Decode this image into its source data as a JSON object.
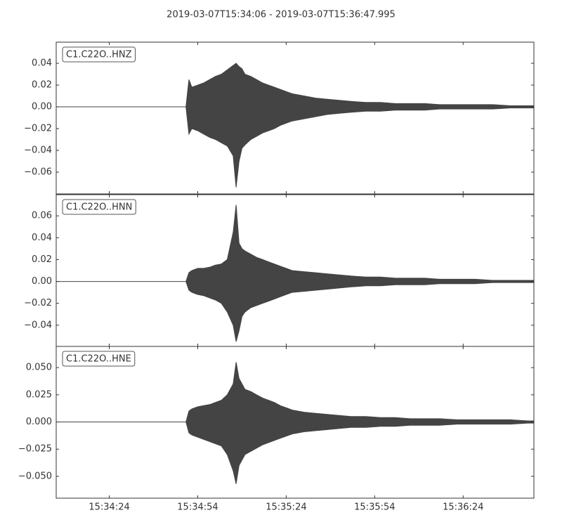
{
  "chart_data": [
    {
      "type": "waveform",
      "title": "2019-03-07T15:34:06  -  2019-03-07T15:36:47.995",
      "label": "C1.C22O..HNZ",
      "color": "#444444",
      "xlim": [
        0,
        161.995
      ],
      "x": [
        0,
        10,
        20,
        30,
        40,
        44,
        45,
        46,
        48,
        50,
        52,
        54,
        56,
        58,
        60,
        61,
        62,
        63,
        64,
        66,
        68,
        70,
        72,
        74,
        76,
        78,
        80,
        84,
        88,
        92,
        96,
        100,
        105,
        110,
        115,
        120,
        125,
        130,
        136,
        142,
        148,
        154,
        160,
        161.995
      ],
      "upper": [
        0,
        0,
        0,
        0,
        0,
        0,
        0.025,
        0.018,
        0.02,
        0.022,
        0.025,
        0.028,
        0.03,
        0.034,
        0.038,
        0.04,
        0.037,
        0.035,
        0.03,
        0.028,
        0.025,
        0.022,
        0.02,
        0.018,
        0.016,
        0.014,
        0.012,
        0.01,
        0.008,
        0.007,
        0.006,
        0.005,
        0.004,
        0.004,
        0.003,
        0.003,
        0.003,
        0.002,
        0.002,
        0.002,
        0.002,
        0.001,
        0.001,
        0.001
      ],
      "lower": [
        0,
        0,
        0,
        0,
        0,
        0,
        -0.025,
        -0.02,
        -0.022,
        -0.025,
        -0.028,
        -0.03,
        -0.033,
        -0.036,
        -0.045,
        -0.074,
        -0.05,
        -0.038,
        -0.035,
        -0.03,
        -0.027,
        -0.024,
        -0.022,
        -0.02,
        -0.017,
        -0.015,
        -0.013,
        -0.011,
        -0.009,
        -0.007,
        -0.006,
        -0.005,
        -0.004,
        -0.004,
        -0.003,
        -0.003,
        -0.003,
        -0.002,
        -0.002,
        -0.002,
        -0.002,
        -0.001,
        -0.001,
        -0.001
      ],
      "ylim": [
        -0.08,
        0.0594
      ],
      "yticks": [
        {
          "value": -0.06,
          "label": "−0.06"
        },
        {
          "value": -0.04,
          "label": "−0.04"
        },
        {
          "value": -0.02,
          "label": "−0.02"
        },
        {
          "value": 0,
          "label": "0.00"
        },
        0.02,
        0.04
      ]
    },
    {
      "type": "waveform",
      "label": "C1.C22O..HNN",
      "color": "#444444",
      "xlim": [
        0,
        161.995
      ],
      "x": [
        0,
        10,
        20,
        30,
        40,
        44,
        45,
        46,
        48,
        50,
        52,
        54,
        56,
        58,
        60,
        61,
        62,
        63,
        64,
        66,
        68,
        70,
        72,
        74,
        76,
        78,
        80,
        84,
        88,
        92,
        96,
        100,
        105,
        110,
        115,
        120,
        125,
        130,
        136,
        142,
        148,
        154,
        160,
        161.995
      ],
      "upper": [
        0,
        0,
        0,
        0,
        0,
        0,
        0.008,
        0.01,
        0.012,
        0.012,
        0.013,
        0.015,
        0.016,
        0.02,
        0.045,
        0.07,
        0.035,
        0.03,
        0.028,
        0.025,
        0.022,
        0.02,
        0.018,
        0.016,
        0.014,
        0.012,
        0.01,
        0.009,
        0.008,
        0.007,
        0.006,
        0.005,
        0.004,
        0.004,
        0.003,
        0.003,
        0.003,
        0.002,
        0.002,
        0.002,
        0.001,
        0.001,
        0.001,
        0.001
      ],
      "lower": [
        0,
        0,
        0,
        0,
        0,
        0,
        -0.008,
        -0.01,
        -0.012,
        -0.013,
        -0.015,
        -0.017,
        -0.02,
        -0.028,
        -0.04,
        -0.055,
        -0.045,
        -0.032,
        -0.028,
        -0.024,
        -0.022,
        -0.02,
        -0.018,
        -0.016,
        -0.014,
        -0.012,
        -0.01,
        -0.009,
        -0.008,
        -0.007,
        -0.006,
        -0.005,
        -0.004,
        -0.004,
        -0.003,
        -0.003,
        -0.003,
        -0.002,
        -0.002,
        -0.002,
        -0.001,
        -0.001,
        -0.001,
        -0.001
      ],
      "ylim": [
        -0.0594,
        0.0794
      ],
      "yticks": [
        {
          "value": -0.04,
          "label": "−0.04"
        },
        {
          "value": -0.02,
          "label": "−0.02"
        },
        {
          "value": 0,
          "label": "0.00"
        },
        0.02,
        0.04,
        0.06
      ]
    },
    {
      "type": "waveform",
      "label": "C1.C22O..HNE",
      "color": "#444444",
      "xlim": [
        0,
        161.995
      ],
      "x": [
        0,
        10,
        20,
        30,
        40,
        44,
        45,
        46,
        48,
        50,
        52,
        54,
        56,
        58,
        60,
        61,
        62,
        63,
        64,
        66,
        68,
        70,
        72,
        74,
        76,
        78,
        80,
        84,
        88,
        92,
        96,
        100,
        105,
        110,
        115,
        120,
        125,
        130,
        136,
        142,
        148,
        154,
        160,
        161.995
      ],
      "upper": [
        0,
        0,
        0,
        0,
        0,
        0,
        0.01,
        0.012,
        0.014,
        0.015,
        0.016,
        0.018,
        0.02,
        0.025,
        0.035,
        0.055,
        0.04,
        0.035,
        0.03,
        0.028,
        0.025,
        0.022,
        0.02,
        0.018,
        0.015,
        0.013,
        0.011,
        0.009,
        0.008,
        0.007,
        0.006,
        0.005,
        0.005,
        0.004,
        0.004,
        0.003,
        0.003,
        0.003,
        0.002,
        0.002,
        0.002,
        0.002,
        0.001,
        0.001
      ],
      "lower": [
        0,
        0,
        0,
        0,
        0,
        0,
        -0.01,
        -0.012,
        -0.014,
        -0.016,
        -0.018,
        -0.02,
        -0.022,
        -0.03,
        -0.045,
        -0.057,
        -0.04,
        -0.035,
        -0.03,
        -0.027,
        -0.024,
        -0.021,
        -0.019,
        -0.017,
        -0.015,
        -0.013,
        -0.011,
        -0.009,
        -0.008,
        -0.007,
        -0.006,
        -0.005,
        -0.005,
        -0.004,
        -0.004,
        -0.003,
        -0.003,
        -0.003,
        -0.002,
        -0.002,
        -0.002,
        -0.002,
        -0.001,
        -0.001
      ],
      "ylim": [
        -0.0701,
        0.0695
      ],
      "yticks": [
        {
          "value": -0.05,
          "label": "−0.050"
        },
        {
          "value": -0.025,
          "label": "−0.025"
        },
        {
          "value": 0,
          "label": "0.000"
        },
        {
          "value": 0.025,
          "label": "0.025"
        },
        {
          "value": 0.05,
          "label": "0.050"
        }
      ],
      "xticks": [
        {
          "value": 18,
          "label": "15:34:24"
        },
        {
          "value": 48,
          "label": "15:34:54"
        },
        {
          "value": 78,
          "label": "15:35:24"
        },
        {
          "value": 108,
          "label": "15:35:54"
        },
        {
          "value": 138,
          "label": "15:36:24"
        }
      ]
    }
  ]
}
